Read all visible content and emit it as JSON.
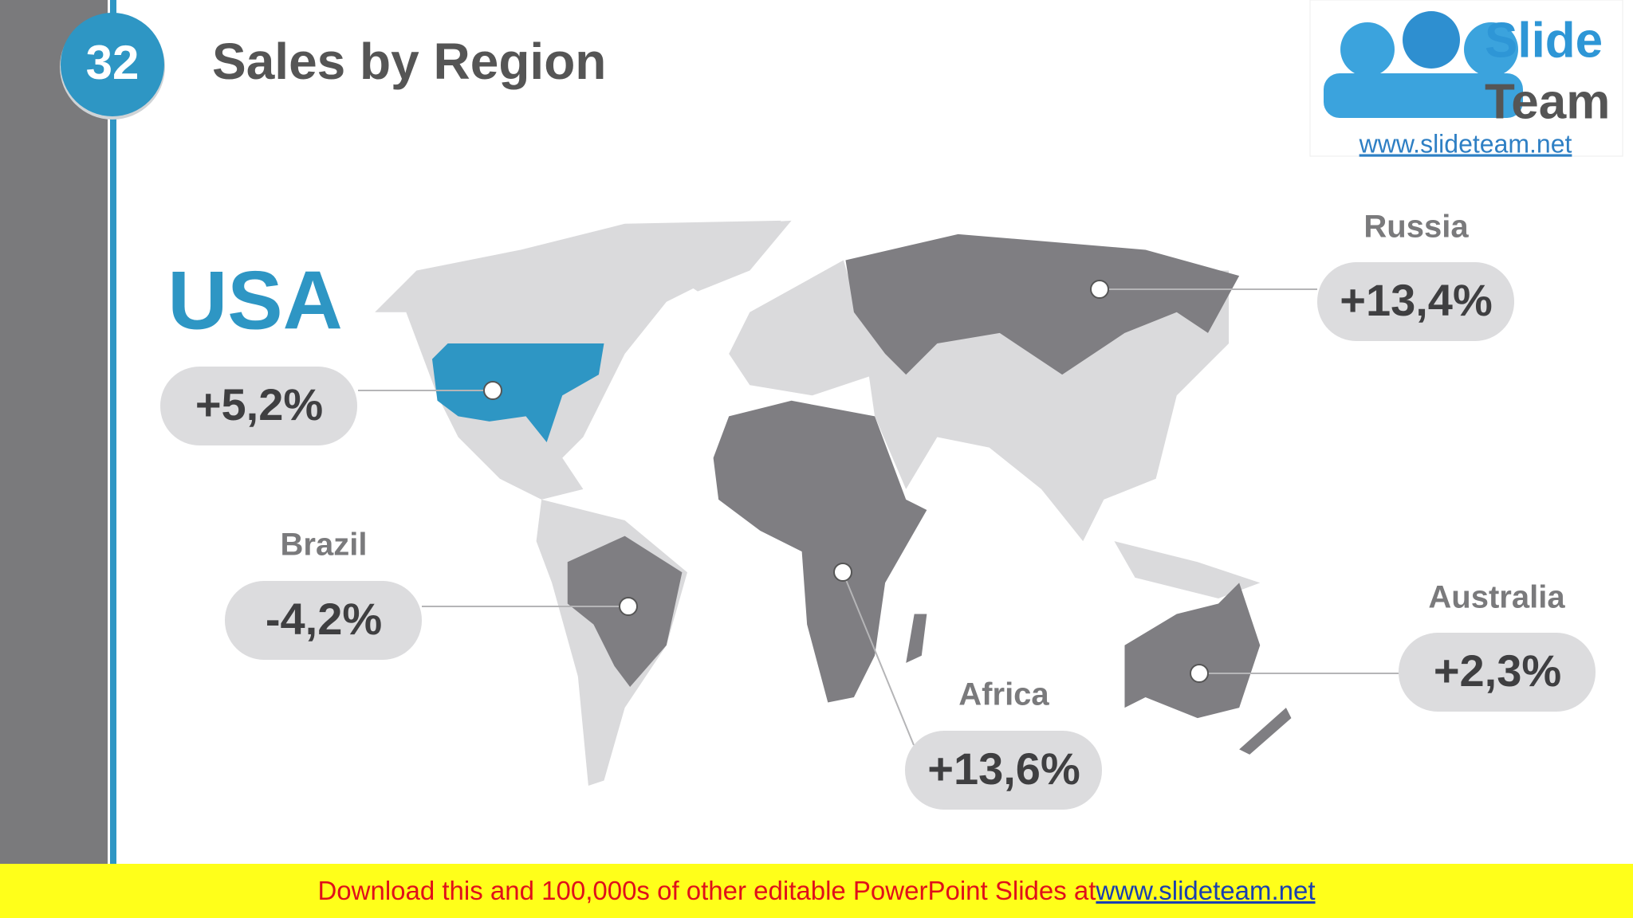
{
  "slide_number": "32",
  "title": "Sales by Region",
  "logo": {
    "line1": "Slide",
    "line2": "Team",
    "url": "www.slideteam.net"
  },
  "regions": [
    {
      "name": "USA",
      "value": "+5,2%"
    },
    {
      "name": "Russia",
      "value": "+13,4%"
    },
    {
      "name": "Brazil",
      "value": "-4,2%"
    },
    {
      "name": "Africa",
      "value": "+13,6%"
    },
    {
      "name": "Australia",
      "value": "+2,3%"
    }
  ],
  "footer": {
    "text": "Download this and 100,000s of other editable PowerPoint Slides at ",
    "link": "www.slideteam.net"
  }
}
